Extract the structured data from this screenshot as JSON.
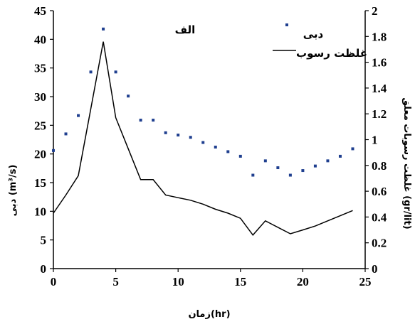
{
  "chart_data": {
    "type": "scatter+line",
    "panel_label": "الف",
    "xlabel": "زمان(hr)",
    "ylabel_left": "دبی (m³/s)",
    "ylabel_right": "غلظت رسوبات معلق (gr/lit)",
    "xlim": [
      0,
      25
    ],
    "ylim_left": [
      0,
      45
    ],
    "ylim_right": [
      0,
      2
    ],
    "x_ticks": [
      "0",
      "5",
      "10",
      "15",
      "20",
      "25"
    ],
    "y_left_ticks": [
      "0",
      "5",
      "10",
      "15",
      "20",
      "25",
      "30",
      "35",
      "40",
      "45"
    ],
    "y_right_ticks": [
      "0",
      "0.2",
      "0.4",
      "0.6",
      "0.8",
      "1",
      "1.2",
      "1.4",
      "1.6",
      "1.8",
      "2"
    ],
    "grid": false,
    "legend_position": "top-right",
    "series": [
      {
        "name": "دبی",
        "kind": "scatter",
        "axis": "left",
        "color": "#1f3f8f",
        "x": [
          0,
          1,
          2,
          3,
          4,
          5,
          6,
          7,
          8,
          9,
          10,
          11,
          12,
          13,
          14,
          15,
          16,
          17,
          18,
          19,
          20,
          21,
          22,
          23,
          24
        ],
        "y": [
          20.6,
          23.5,
          26.7,
          34.3,
          41.8,
          34.3,
          30.1,
          25.9,
          25.9,
          23.7,
          23.3,
          22.9,
          22.0,
          21.2,
          20.4,
          19.6,
          16.3,
          18.8,
          17.6,
          16.3,
          17.1,
          17.9,
          18.8,
          19.6,
          20.9
        ]
      },
      {
        "name": "غلظت رسوب",
        "kind": "line",
        "axis": "right",
        "color": "#000000",
        "x": [
          0,
          1,
          2,
          3,
          4,
          5,
          6,
          7,
          8,
          9,
          10,
          11,
          12,
          13,
          14,
          15,
          16,
          17,
          18,
          19,
          20,
          21,
          22,
          23,
          24
        ],
        "y": [
          0.43,
          0.57,
          0.72,
          1.24,
          1.76,
          1.17,
          0.93,
          0.69,
          0.69,
          0.57,
          0.55,
          0.53,
          0.5,
          0.46,
          0.43,
          0.39,
          0.26,
          0.37,
          0.32,
          0.27,
          0.3,
          0.33,
          0.37,
          0.41,
          0.45
        ]
      }
    ]
  }
}
